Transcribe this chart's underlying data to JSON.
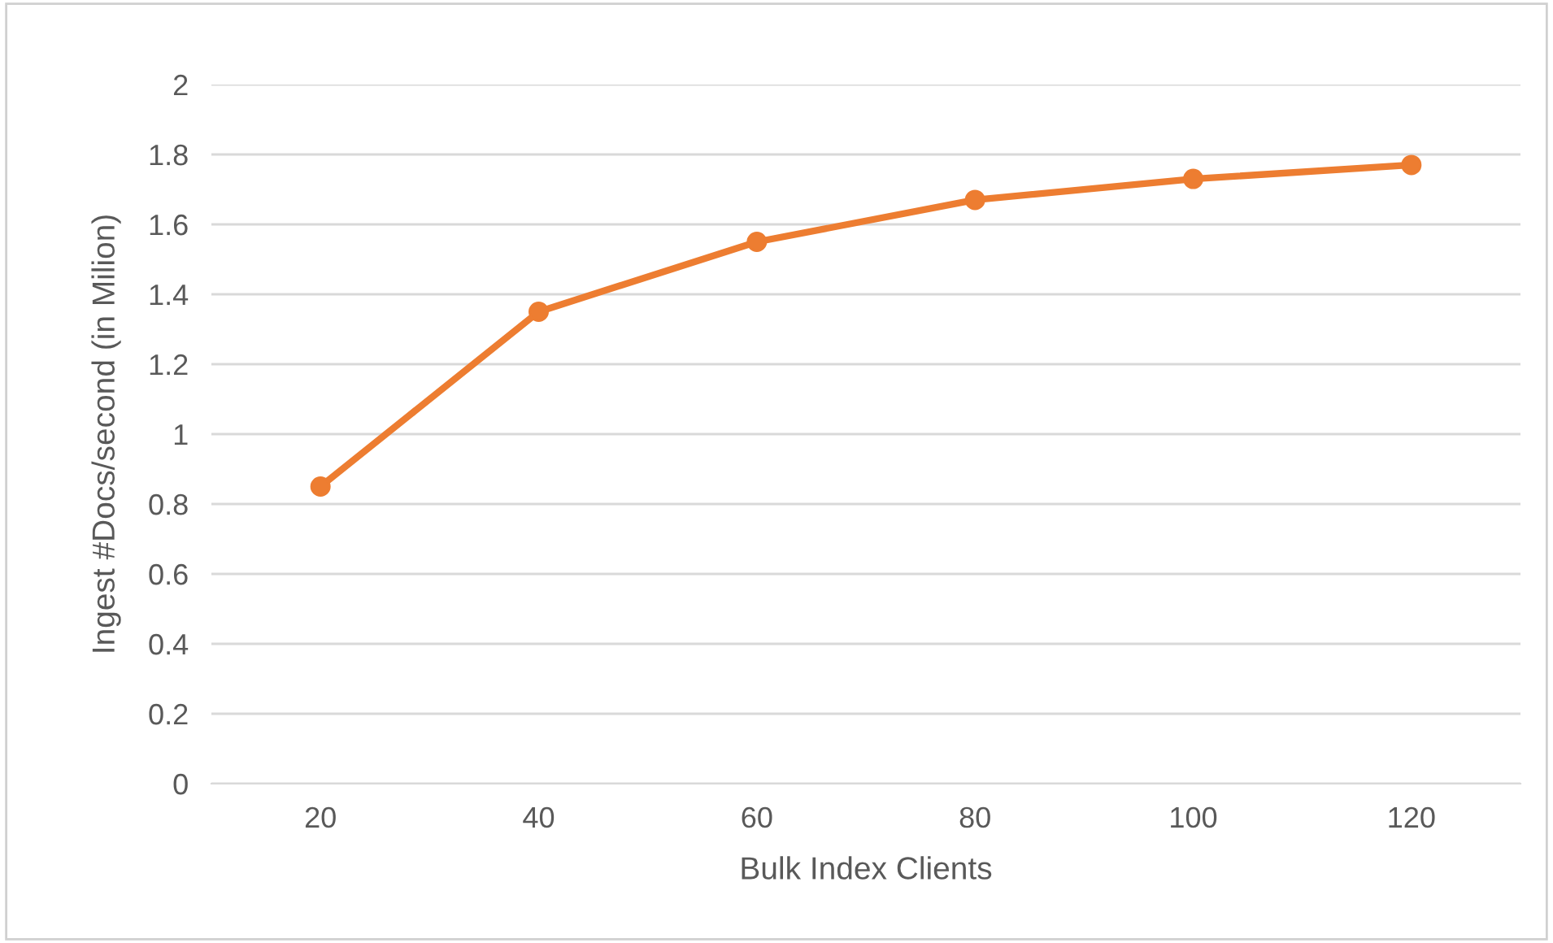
{
  "chart_data": {
    "type": "line",
    "xlabel": "Bulk Index Clients",
    "ylabel": "Ingest #Docs/second (in Milion)",
    "categories": [
      "20",
      "40",
      "60",
      "80",
      "100",
      "120"
    ],
    "series": [
      {
        "color": "#ed7d31",
        "values": [
          0.85,
          1.35,
          1.55,
          1.67,
          1.73,
          1.77
        ]
      }
    ],
    "ylim": [
      0,
      2
    ],
    "yticks": [
      0,
      0.2,
      0.4,
      0.6,
      0.8,
      1,
      1.2,
      1.4,
      1.6,
      1.8,
      2
    ],
    "grid": "y",
    "marker": "circle",
    "line_style": "solid",
    "legend": false
  }
}
